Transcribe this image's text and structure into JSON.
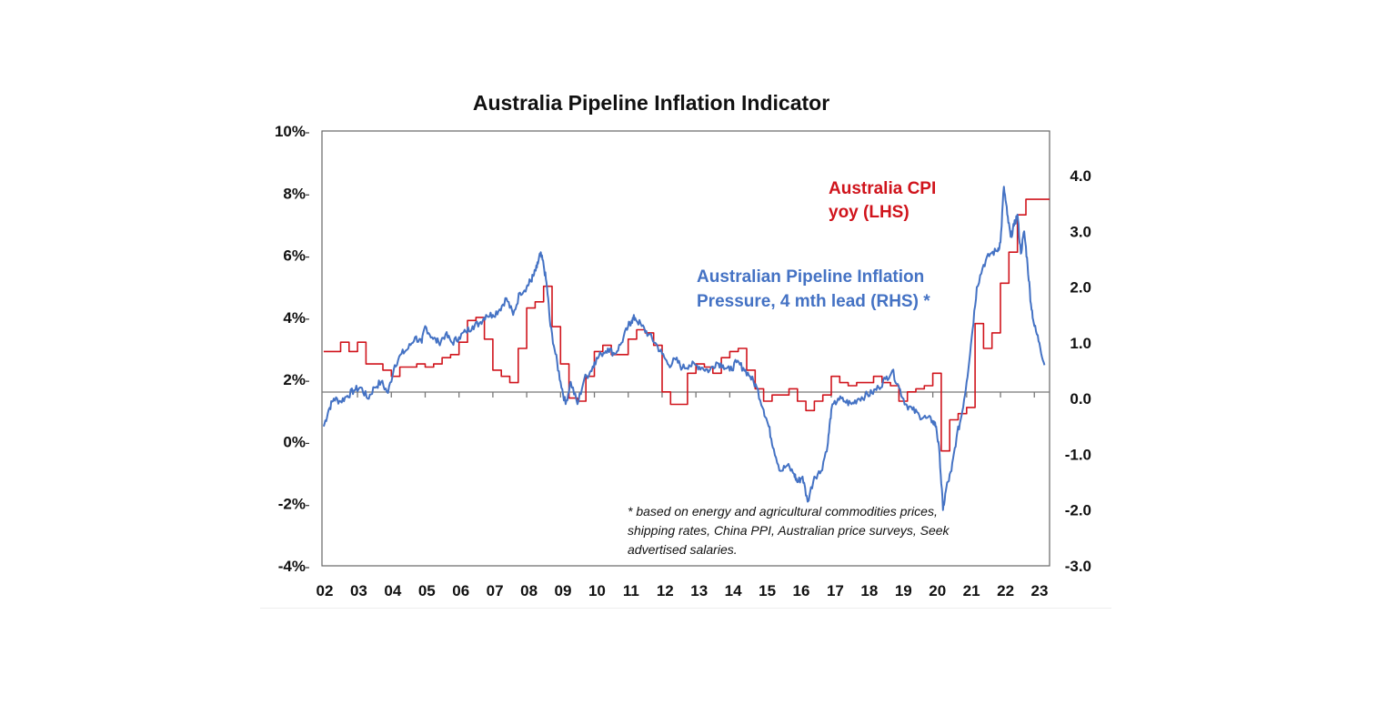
{
  "chart_data": {
    "type": "line",
    "title": "Australia Pipeline Inflation Indicator",
    "x_ticks": [
      "02",
      "03",
      "04",
      "05",
      "06",
      "07",
      "08",
      "09",
      "10",
      "11",
      "12",
      "13",
      "14",
      "15",
      "16",
      "17",
      "18",
      "19",
      "20",
      "21",
      "22",
      "23"
    ],
    "left_axis": {
      "ylim": [
        -4,
        10
      ],
      "ticks": [
        "10%",
        "8%",
        "6%",
        "4%",
        "2%",
        "0%",
        "-2%",
        "-4%"
      ],
      "tick_values": [
        10,
        8,
        6,
        4,
        2,
        0,
        -2,
        -4
      ]
    },
    "right_axis": {
      "ylim": [
        -3,
        4.8
      ],
      "ticks": [
        "4.0",
        "3.0",
        "2.0",
        "1.0",
        "0.0",
        "-1.0",
        "-2.0",
        "-3.0"
      ],
      "tick_values": [
        4,
        3,
        2,
        1,
        0,
        -1,
        -2,
        -3
      ]
    },
    "grid": false,
    "colors": {
      "cpi": "#d0141c",
      "pipeline": "#4472c4",
      "zero_line": "#777777"
    },
    "series": [
      {
        "name": "Australia CPI yoy (LHS)",
        "label_lines": [
          "Australia CPI",
          "yoy (LHS)"
        ],
        "axis": "left",
        "step": true,
        "x": [
          2002.0,
          2002.25,
          2002.5,
          2002.75,
          2003.0,
          2003.25,
          2003.5,
          2003.75,
          2004.0,
          2004.25,
          2004.5,
          2004.75,
          2005.0,
          2005.25,
          2005.5,
          2005.75,
          2006.0,
          2006.25,
          2006.5,
          2006.75,
          2007.0,
          2007.25,
          2007.5,
          2007.75,
          2008.0,
          2008.25,
          2008.5,
          2008.75,
          2009.0,
          2009.25,
          2009.5,
          2009.75,
          2010.0,
          2010.25,
          2010.5,
          2010.75,
          2011.0,
          2011.25,
          2011.5,
          2011.75,
          2012.0,
          2012.25,
          2012.5,
          2012.75,
          2013.0,
          2013.25,
          2013.5,
          2013.75,
          2014.0,
          2014.25,
          2014.5,
          2014.75,
          2015.0,
          2015.25,
          2015.5,
          2015.75,
          2016.0,
          2016.25,
          2016.5,
          2016.75,
          2017.0,
          2017.25,
          2017.5,
          2017.75,
          2018.0,
          2018.25,
          2018.5,
          2018.75,
          2019.0,
          2019.25,
          2019.5,
          2019.75,
          2020.0,
          2020.25,
          2020.5,
          2020.75,
          2021.0,
          2021.25,
          2021.5,
          2021.75,
          2022.0,
          2022.25,
          2022.5,
          2022.75,
          2023.0,
          2023.25
        ],
        "values": [
          2.9,
          2.9,
          3.2,
          2.9,
          3.2,
          2.5,
          2.5,
          2.3,
          2.1,
          2.4,
          2.4,
          2.5,
          2.4,
          2.5,
          2.7,
          2.8,
          3.2,
          3.9,
          4.0,
          3.3,
          2.3,
          2.1,
          1.9,
          3.0,
          4.3,
          4.5,
          5.0,
          3.7,
          2.5,
          1.4,
          1.3,
          2.1,
          2.9,
          3.1,
          2.8,
          2.8,
          3.3,
          3.6,
          3.5,
          3.1,
          1.6,
          1.2,
          1.2,
          2.2,
          2.5,
          2.4,
          2.2,
          2.7,
          2.9,
          3.0,
          2.3,
          1.7,
          1.3,
          1.5,
          1.5,
          1.7,
          1.3,
          1.0,
          1.3,
          1.5,
          2.1,
          1.9,
          1.8,
          1.9,
          1.9,
          2.1,
          1.9,
          1.8,
          1.3,
          1.6,
          1.7,
          1.8,
          2.2,
          -0.3,
          0.7,
          0.9,
          1.1,
          3.8,
          3.0,
          3.5,
          5.1,
          6.1,
          7.3,
          7.8,
          7.8,
          7.8
        ]
      },
      {
        "name": "Australian Pipeline Inflation Pressure, 4 mth lead (RHS) *",
        "label_lines": [
          "Australian Pipeline Inflation",
          "Pressure, 4 mth lead (RHS) *"
        ],
        "axis": "right",
        "step": false,
        "x": [
          2002.0,
          2002.15,
          2002.3,
          2002.5,
          2002.7,
          2002.9,
          2003.1,
          2003.3,
          2003.5,
          2003.7,
          2003.9,
          2004.1,
          2004.3,
          2004.5,
          2004.7,
          2004.9,
          2005.0,
          2005.2,
          2005.4,
          2005.6,
          2005.8,
          2006.0,
          2006.2,
          2006.4,
          2006.6,
          2006.8,
          2007.0,
          2007.2,
          2007.4,
          2007.6,
          2007.8,
          2008.0,
          2008.1,
          2008.2,
          2008.3,
          2008.4,
          2008.5,
          2008.6,
          2008.7,
          2008.85,
          2009.0,
          2009.15,
          2009.3,
          2009.5,
          2009.7,
          2009.9,
          2010.0,
          2010.2,
          2010.4,
          2010.6,
          2010.8,
          2011.0,
          2011.1,
          2011.2,
          2011.4,
          2011.6,
          2011.8,
          2012.0,
          2012.2,
          2012.4,
          2012.6,
          2012.8,
          2013.0,
          2013.2,
          2013.4,
          2013.6,
          2013.8,
          2014.0,
          2014.2,
          2014.4,
          2014.6,
          2014.8,
          2015.0,
          2015.15,
          2015.3,
          2015.5,
          2015.7,
          2015.9,
          2016.0,
          2016.15,
          2016.3,
          2016.5,
          2016.7,
          2016.9,
          2017.0,
          2017.2,
          2017.4,
          2017.6,
          2017.8,
          2018.0,
          2018.2,
          2018.4,
          2018.6,
          2018.8,
          2019.0,
          2019.2,
          2019.4,
          2019.6,
          2019.8,
          2020.0,
          2020.1,
          2020.2,
          2020.3,
          2020.4,
          2020.55,
          2020.7,
          2020.85,
          2021.0,
          2021.15,
          2021.3,
          2021.5,
          2021.7,
          2021.9,
          2022.0,
          2022.1,
          2022.2,
          2022.3,
          2022.4,
          2022.5,
          2022.6,
          2022.7,
          2022.8,
          2022.9,
          2023.0,
          2023.15,
          2023.3
        ],
        "values": [
          -0.5,
          -0.2,
          0.0,
          -0.05,
          0.05,
          0.15,
          0.2,
          0.0,
          0.2,
          0.3,
          0.1,
          0.6,
          0.8,
          0.9,
          1.1,
          1.0,
          1.3,
          1.1,
          1.0,
          1.15,
          1.0,
          1.1,
          1.2,
          1.3,
          1.35,
          1.5,
          1.5,
          1.6,
          1.8,
          1.5,
          1.9,
          2.0,
          2.1,
          2.2,
          2.35,
          2.6,
          2.4,
          2.0,
          1.3,
          0.8,
          0.3,
          -0.1,
          0.3,
          -0.1,
          0.35,
          0.5,
          0.65,
          0.8,
          0.9,
          0.8,
          1.0,
          1.3,
          1.4,
          1.45,
          1.3,
          1.15,
          1.0,
          0.8,
          0.6,
          0.7,
          0.55,
          0.6,
          0.6,
          0.55,
          0.5,
          0.65,
          0.6,
          0.5,
          0.65,
          0.55,
          0.4,
          0.2,
          -0.2,
          -0.5,
          -0.9,
          -1.3,
          -1.2,
          -1.35,
          -1.5,
          -1.4,
          -1.85,
          -1.4,
          -1.3,
          -0.8,
          -0.2,
          0.0,
          -0.05,
          -0.1,
          0.0,
          0.05,
          0.1,
          0.2,
          0.35,
          0.5,
          0.2,
          -0.1,
          -0.2,
          -0.3,
          -0.35,
          -0.4,
          -0.5,
          -1.0,
          -2.0,
          -1.6,
          -1.3,
          -0.7,
          -0.3,
          0.3,
          1.1,
          2.0,
          2.4,
          2.6,
          2.65,
          2.8,
          3.8,
          3.3,
          2.9,
          3.1,
          3.3,
          2.6,
          3.0,
          2.4,
          1.7,
          1.3,
          1.0,
          0.6
        ]
      }
    ],
    "footnote": [
      "* based on energy and agricultural commodities prices,",
      "shipping rates, China PPI, Australian price surveys, Seek",
      "advertised salaries."
    ]
  }
}
